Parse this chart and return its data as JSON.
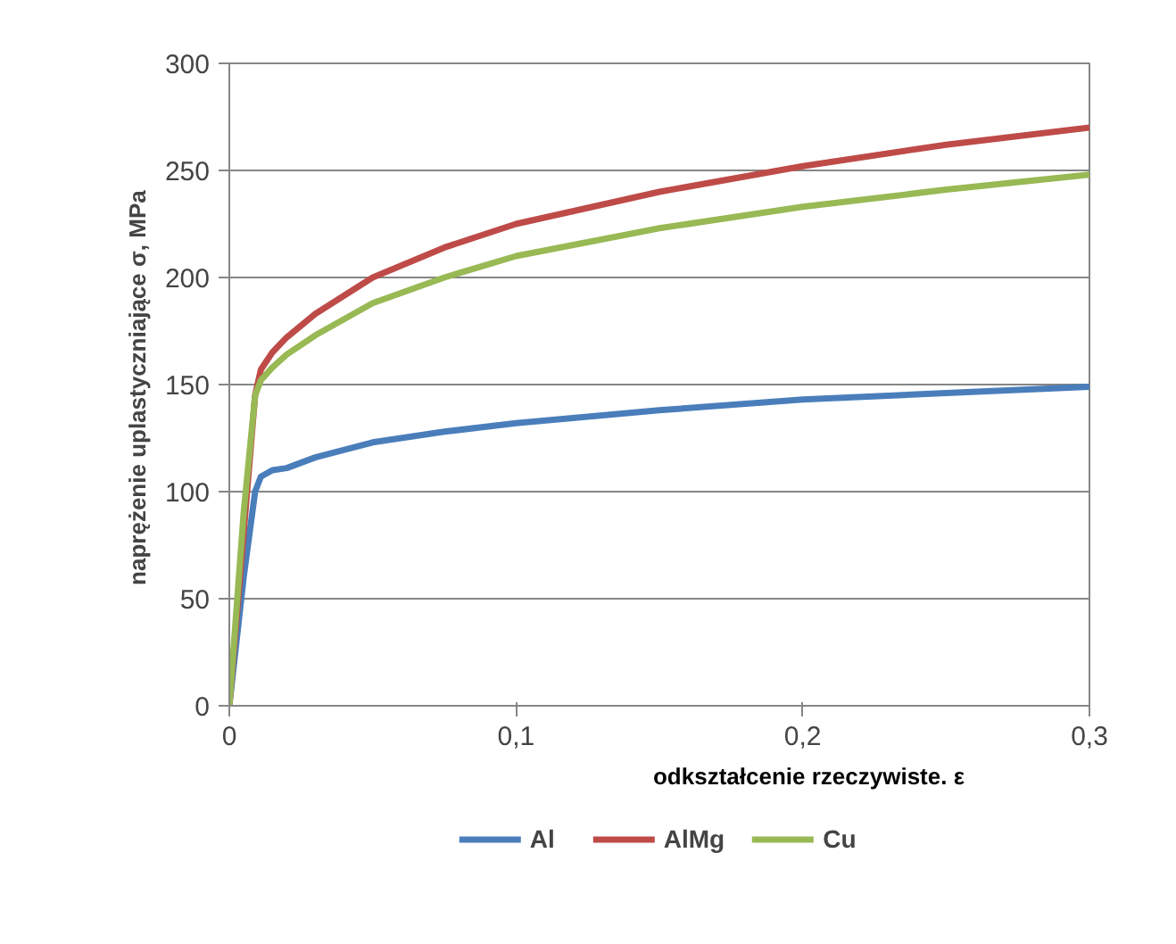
{
  "chart_data": {
    "type": "line",
    "xlabel": "odkształcenie rzeczywiste. ε",
    "ylabel": "naprężenie uplastyczniające σ,  MPa",
    "xlim": [
      0,
      0.3
    ],
    "xticks": [
      0,
      {
        "value": 0.1,
        "label": "0,1"
      },
      {
        "value": 0.2,
        "label": "0,2"
      },
      {
        "value": 0.3,
        "label": "0,3"
      }
    ],
    "ylim": [
      0,
      300
    ],
    "yticks": [
      0,
      50,
      100,
      150,
      200,
      250,
      300
    ],
    "grid": "y",
    "legend": "bottom",
    "marker": "none",
    "line_style": "solid",
    "x": [
      0,
      0.005,
      0.009,
      0.011,
      0.015,
      0.02,
      0.03,
      0.05,
      0.075,
      0.1,
      0.15,
      0.2,
      0.25,
      0.3
    ],
    "series": [
      {
        "name": "Al",
        "color": "#4a7ebb",
        "values": [
          0,
          60,
          100,
          107,
          110,
          111,
          116,
          123,
          128,
          132,
          138,
          143,
          146,
          149
        ]
      },
      {
        "name": "AlMg",
        "color": "#be4b48",
        "x": [
          0,
          0.009,
          0.011,
          0.015,
          0.02,
          0.03,
          0.05,
          0.075,
          0.1,
          0.15,
          0.2,
          0.25,
          0.3
        ],
        "values": [
          0,
          145,
          157,
          165,
          172,
          183,
          200,
          214,
          225,
          240,
          252,
          262,
          270
        ]
      },
      {
        "name": "Cu",
        "color": "#98b954",
        "values": [
          0,
          90,
          145,
          152,
          158,
          164,
          173,
          188,
          200,
          210,
          223,
          233,
          241,
          248
        ]
      }
    ]
  }
}
